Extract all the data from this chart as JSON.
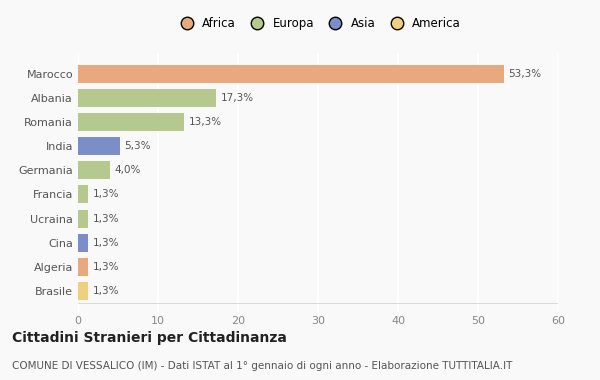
{
  "categories": [
    "Marocco",
    "Albania",
    "Romania",
    "India",
    "Germania",
    "Francia",
    "Ucraina",
    "Cina",
    "Algeria",
    "Brasile"
  ],
  "values": [
    53.3,
    17.3,
    13.3,
    5.3,
    4.0,
    1.3,
    1.3,
    1.3,
    1.3,
    1.3
  ],
  "labels": [
    "53,3%",
    "17,3%",
    "13,3%",
    "5,3%",
    "4,0%",
    "1,3%",
    "1,3%",
    "1,3%",
    "1,3%",
    "1,3%"
  ],
  "colors": [
    "#E8A97E",
    "#B5C98E",
    "#B5C98E",
    "#7B8EC8",
    "#B5C98E",
    "#B5C98E",
    "#B5C98E",
    "#7B8EC8",
    "#E8A97E",
    "#F0D080"
  ],
  "legend_labels": [
    "Africa",
    "Europa",
    "Asia",
    "America"
  ],
  "legend_colors": [
    "#E8A97E",
    "#B5C98E",
    "#7B8EC8",
    "#F0D080"
  ],
  "title": "Cittadini Stranieri per Cittadinanza",
  "subtitle": "COMUNE DI VESSALICO (IM) - Dati ISTAT al 1° gennaio di ogni anno - Elaborazione TUTTITALIA.IT",
  "xlim": [
    0,
    60
  ],
  "xticks": [
    0,
    10,
    20,
    30,
    40,
    50,
    60
  ],
  "background_color": "#f9f9f9",
  "grid_color": "#ffffff",
  "bar_height": 0.75,
  "title_fontsize": 10,
  "subtitle_fontsize": 7.5,
  "label_fontsize": 7.5,
  "ytick_fontsize": 8,
  "xtick_fontsize": 8,
  "legend_fontsize": 8.5
}
